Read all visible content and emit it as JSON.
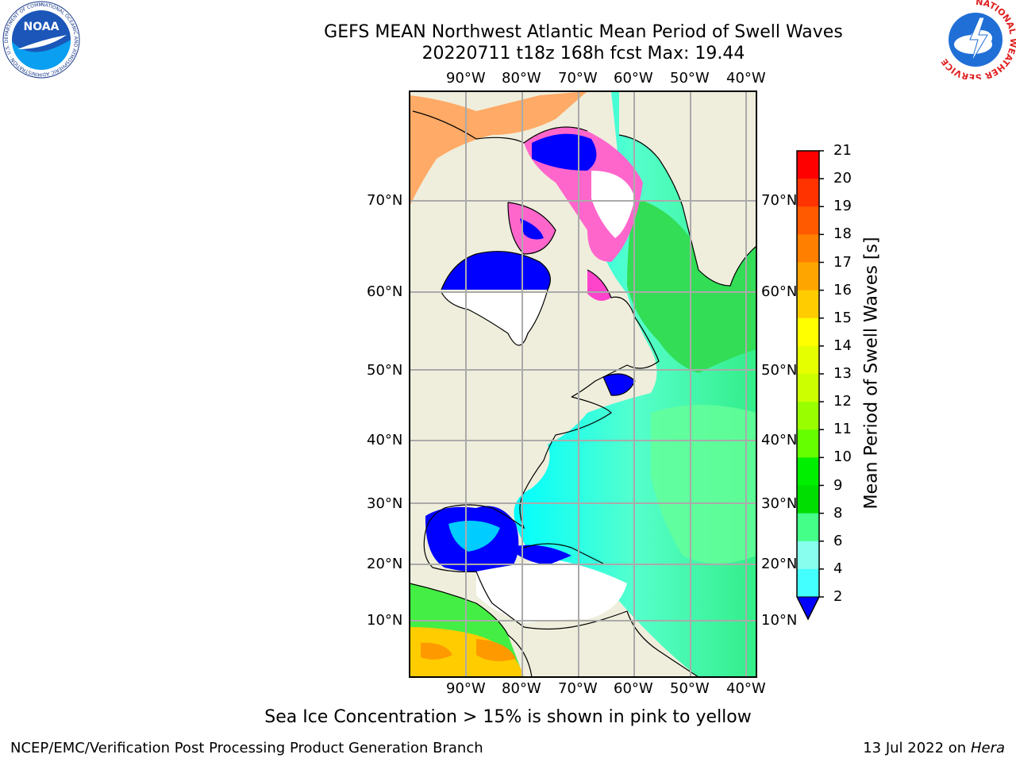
{
  "header": {
    "title_line1": "GEFS MEAN Northwest Atlantic Mean Period of Swell Waves",
    "title_line2": "20220711 t18z 168h fcst   Max: 19.44"
  },
  "logos": {
    "left": "NOAA",
    "left_ring": "NATIONAL OCEANIC AND ATMOSPHERIC ADMINISTRATION · U.S. DEPARTMENT OF COMMERCE",
    "right_ring": "NATIONAL WEATHER SERVICE"
  },
  "map": {
    "lon_labels": [
      "90°W",
      "80°W",
      "70°W",
      "60°W",
      "50°W",
      "40°W"
    ],
    "lat_labels": [
      "70°N",
      "60°N",
      "50°N",
      "40°N",
      "30°N",
      "20°N",
      "10°N"
    ],
    "colors": {
      "land": "#efeedc",
      "ocean_low": "#0000ff",
      "ocean_mid": "#00ffff",
      "ocean_high": "#00e000",
      "ice": "#ff66cc",
      "grid": "#aaaaaa"
    }
  },
  "colorbar": {
    "title": "Mean Period of Swell Waves [s]",
    "ticks": [
      "21",
      "20",
      "19",
      "18",
      "17",
      "16",
      "15",
      "14",
      "13",
      "12",
      "11",
      "10",
      "9",
      "8",
      "6",
      "4",
      "2"
    ],
    "colors": [
      "#ff0000",
      "#ff3300",
      "#ff5a00",
      "#ff8000",
      "#ffa500",
      "#ffcc00",
      "#ffff00",
      "#e6ff00",
      "#ccff00",
      "#99ff00",
      "#66ff00",
      "#00ee00",
      "#00dd00",
      "#44ff88",
      "#88ffee",
      "#44ffff",
      "#00ffff",
      "#00ddff",
      "#0077ff",
      "#0000ff"
    ]
  },
  "notes": {
    "sea_ice": "Sea Ice Concentration > 15% is shown in pink to yellow"
  },
  "footer": {
    "left": "NCEP/EMC/Verification Post Processing Product Generation Branch",
    "date": "13 Jul 2022 on",
    "host": "Hera"
  }
}
